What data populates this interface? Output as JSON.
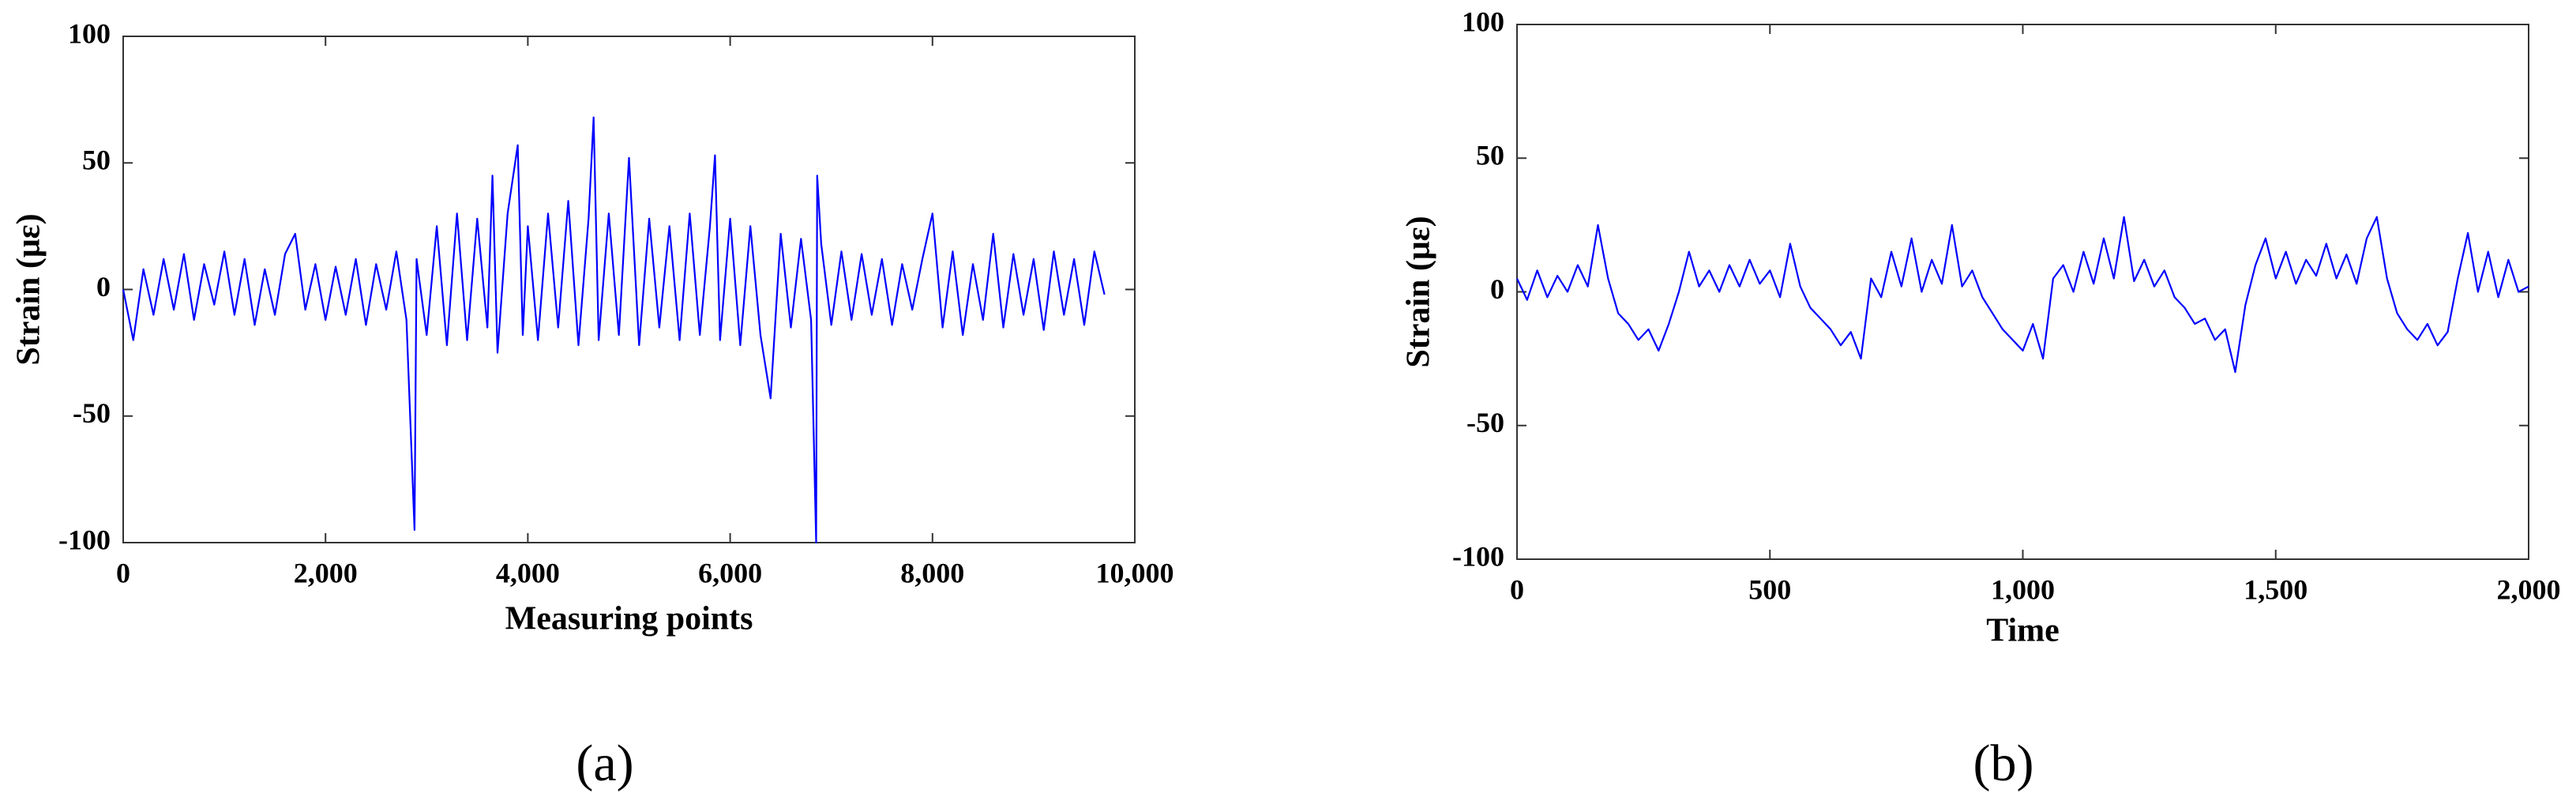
{
  "chart_data": [
    {
      "type": "line",
      "caption": "(a)",
      "xlabel": "Measuring points",
      "ylabel": "Strain (με)",
      "color": "#0000ff",
      "xlim": [
        0,
        10000
      ],
      "ylim": [
        -100,
        100
      ],
      "xticks": [
        0,
        {
          "value": 2000,
          "label": "2,000"
        },
        {
          "value": 4000,
          "label": "4,000"
        },
        {
          "value": 6000,
          "label": "6,000"
        },
        {
          "value": 8000,
          "label": "8,000"
        },
        {
          "value": 10000,
          "label": "10,000"
        }
      ],
      "yticks": [
        100,
        50,
        0,
        -50,
        -100
      ],
      "x": [
        0,
        100,
        200,
        300,
        400,
        500,
        600,
        700,
        800,
        900,
        1000,
        1100,
        1200,
        1300,
        1400,
        1500,
        1600,
        1700,
        1800,
        1900,
        2000,
        2100,
        2200,
        2300,
        2400,
        2500,
        2600,
        2700,
        2800,
        2880,
        2900,
        3000,
        3100,
        3200,
        3300,
        3400,
        3500,
        3600,
        3650,
        3700,
        3800,
        3900,
        3950,
        4000,
        4100,
        4200,
        4300,
        4400,
        4500,
        4600,
        4650,
        4700,
        4800,
        4900,
        5000,
        5100,
        5200,
        5300,
        5400,
        5500,
        5600,
        5700,
        5800,
        5850,
        5900,
        6000,
        6100,
        6200,
        6300,
        6400,
        6500,
        6600,
        6700,
        6800,
        6850,
        6860,
        6900,
        7000,
        7100,
        7200,
        7300,
        7400,
        7500,
        7600,
        7700,
        7800,
        7900,
        8000,
        8100,
        8200,
        8300,
        8400,
        8500,
        8600,
        8700,
        8800,
        8900,
        9000,
        9100,
        9200,
        9300,
        9400,
        9500,
        9600,
        9700
      ],
      "values": [
        0,
        -20,
        8,
        -10,
        12,
        -8,
        14,
        -12,
        10,
        -6,
        15,
        -10,
        12,
        -14,
        8,
        -10,
        14,
        22,
        -8,
        10,
        -12,
        9,
        -10,
        12,
        -14,
        10,
        -8,
        15,
        -12,
        -95,
        12,
        -18,
        25,
        -22,
        30,
        -20,
        28,
        -15,
        45,
        -25,
        30,
        57,
        -18,
        25,
        -20,
        30,
        -15,
        35,
        -22,
        28,
        68,
        -20,
        30,
        -18,
        52,
        -22,
        28,
        -15,
        25,
        -20,
        30,
        -18,
        25,
        53,
        -20,
        28,
        -22,
        25,
        -18,
        -43,
        22,
        -15,
        20,
        -12,
        -100,
        45,
        18,
        -14,
        15,
        -12,
        14,
        -10,
        12,
        -14,
        10,
        -8,
        12,
        30,
        -15,
        15,
        -18,
        10,
        -12,
        22,
        -15,
        14,
        -10,
        12,
        -16,
        15,
        -10,
        12,
        -14,
        15,
        -2
      ]
    },
    {
      "type": "line",
      "caption": "(b)",
      "xlabel": "Time",
      "ylabel": "Strain (με)",
      "color": "#0000ff",
      "xlim": [
        0,
        2000
      ],
      "ylim": [
        -100,
        100
      ],
      "xticks": [
        0,
        500,
        {
          "value": 1000,
          "label": "1,000"
        },
        {
          "value": 1500,
          "label": "1,500"
        },
        {
          "value": 2000,
          "label": "2,000"
        }
      ],
      "yticks": [
        100,
        50,
        0,
        -50,
        -100
      ],
      "x": [
        0,
        20,
        40,
        60,
        80,
        100,
        120,
        140,
        160,
        180,
        200,
        220,
        240,
        260,
        280,
        300,
        320,
        340,
        360,
        380,
        400,
        420,
        440,
        460,
        480,
        500,
        520,
        540,
        560,
        580,
        600,
        620,
        640,
        660,
        680,
        700,
        720,
        740,
        760,
        780,
        800,
        820,
        840,
        860,
        880,
        900,
        920,
        940,
        960,
        980,
        1000,
        1020,
        1040,
        1060,
        1080,
        1100,
        1120,
        1140,
        1160,
        1180,
        1200,
        1220,
        1240,
        1260,
        1280,
        1300,
        1320,
        1340,
        1360,
        1380,
        1400,
        1420,
        1440,
        1460,
        1480,
        1500,
        1520,
        1540,
        1560,
        1580,
        1600,
        1620,
        1640,
        1660,
        1680,
        1700,
        1720,
        1740,
        1760,
        1780,
        1800,
        1820,
        1840,
        1860,
        1880,
        1900,
        1920,
        1940,
        1960,
        1980,
        2000
      ],
      "values": [
        5,
        -3,
        8,
        -2,
        6,
        0,
        10,
        2,
        25,
        5,
        -8,
        -12,
        -18,
        -14,
        -22,
        -12,
        0,
        15,
        2,
        8,
        0,
        10,
        2,
        12,
        3,
        8,
        -2,
        18,
        2,
        -6,
        -10,
        -14,
        -20,
        -15,
        -25,
        5,
        -2,
        15,
        2,
        20,
        0,
        12,
        3,
        25,
        2,
        8,
        -2,
        -8,
        -14,
        -18,
        -22,
        -12,
        -25,
        5,
        10,
        0,
        15,
        3,
        20,
        5,
        28,
        4,
        12,
        2,
        8,
        -2,
        -6,
        -12,
        -10,
        -18,
        -14,
        -30,
        -5,
        10,
        20,
        5,
        15,
        3,
        12,
        6,
        18,
        5,
        14,
        3,
        20,
        28,
        5,
        -8,
        -14,
        -18,
        -12,
        -20,
        -15,
        5,
        22,
        0,
        15,
        -2,
        12,
        0,
        2
      ]
    }
  ]
}
